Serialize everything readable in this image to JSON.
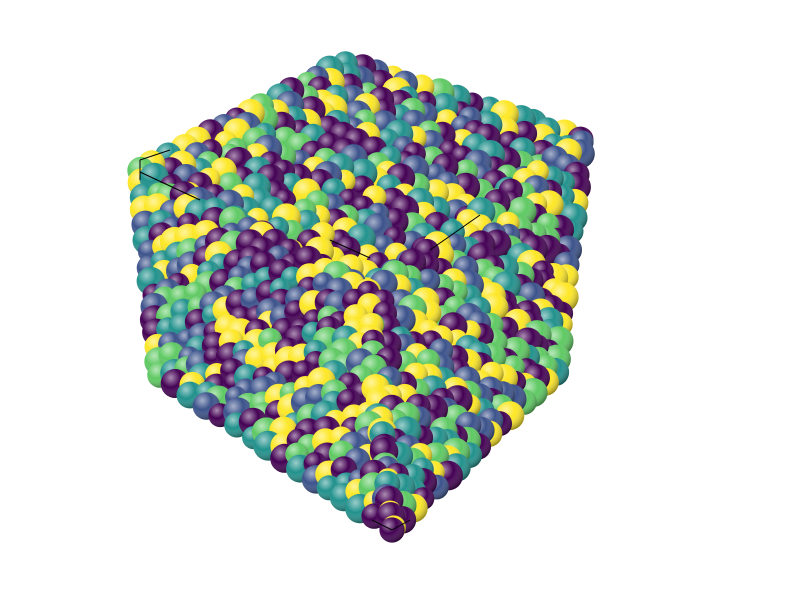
{
  "scene": {
    "subject": "atomistic-cube",
    "background_color": "#ffffff",
    "edge_color": "#000000",
    "colormap": [
      "#440154",
      "#3b528b",
      "#21918c",
      "#5ec962",
      "#fde725"
    ],
    "grid_divisions": 15
  }
}
